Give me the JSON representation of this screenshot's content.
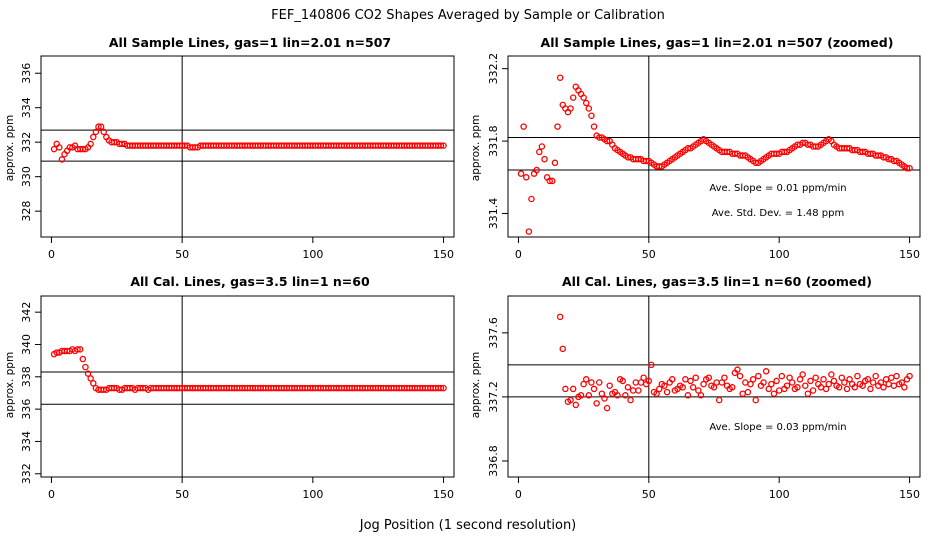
{
  "main_title": "FEF_140806  CO2 Shapes Averaged by Sample or Calibration",
  "x_axis_label": "Jog Position (1 second resolution)",
  "chart_data": [
    {
      "type": "scatter",
      "title": "All Sample Lines, gas=1 lin=2.01 n=507",
      "ylabel": "approx. ppm",
      "xlim": [
        -4,
        154
      ],
      "ylim": [
        326.5,
        337
      ],
      "xticks": [
        0,
        50,
        100,
        150
      ],
      "yticks": [
        328,
        330,
        332,
        334,
        336
      ],
      "hlines": [
        332.7,
        330.9
      ],
      "vline": 50,
      "color": "#ff0000",
      "annotations": [],
      "x": [
        1,
        2,
        3,
        4,
        5,
        6,
        7,
        8,
        9,
        10,
        11,
        12,
        13,
        14,
        15,
        16,
        17,
        18,
        19,
        20,
        21,
        22,
        23,
        24,
        25,
        26,
        27,
        28,
        29,
        30,
        31,
        32,
        33,
        34,
        35,
        36,
        37,
        38,
        39,
        40,
        41,
        42,
        43,
        44,
        45,
        46,
        47,
        48,
        49,
        50,
        51,
        52,
        53,
        54,
        55,
        56,
        57,
        58,
        59,
        60,
        61,
        62,
        63,
        64,
        65,
        66,
        67,
        68,
        69,
        70,
        71,
        72,
        73,
        74,
        75,
        76,
        77,
        78,
        79,
        80,
        81,
        82,
        83,
        84,
        85,
        86,
        87,
        88,
        89,
        90,
        91,
        92,
        93,
        94,
        95,
        96,
        97,
        98,
        99,
        100,
        101,
        102,
        103,
        104,
        105,
        106,
        107,
        108,
        109,
        110,
        111,
        112,
        113,
        114,
        115,
        116,
        117,
        118,
        119,
        120,
        121,
        122,
        123,
        124,
        125,
        126,
        127,
        128,
        129,
        130,
        131,
        132,
        133,
        134,
        135,
        136,
        137,
        138,
        139,
        140,
        141,
        142,
        143,
        144,
        145,
        146,
        147,
        148,
        149,
        150
      ],
      "y": [
        331.6,
        331.9,
        331.7,
        331.0,
        331.3,
        331.5,
        331.7,
        331.7,
        331.8,
        331.6,
        331.6,
        331.6,
        331.6,
        331.7,
        331.9,
        332.3,
        332.6,
        332.9,
        332.9,
        332.6,
        332.3,
        332.1,
        332.0,
        332.0,
        332.0,
        331.9,
        331.9,
        331.9,
        331.8,
        331.8,
        331.8,
        331.8,
        331.8,
        331.8,
        331.8,
        331.8,
        331.8,
        331.8,
        331.8,
        331.8,
        331.8,
        331.8,
        331.8,
        331.8,
        331.8,
        331.8,
        331.8,
        331.8,
        331.8,
        331.8,
        331.8,
        331.8,
        331.7,
        331.7,
        331.7,
        331.7,
        331.8,
        331.8,
        331.8,
        331.8,
        331.8,
        331.8,
        331.8,
        331.8,
        331.8,
        331.8,
        331.8,
        331.8,
        331.8,
        331.8,
        331.8,
        331.8,
        331.8,
        331.8,
        331.8,
        331.8,
        331.8,
        331.8,
        331.8,
        331.8,
        331.8,
        331.8,
        331.8,
        331.8,
        331.8,
        331.8,
        331.8,
        331.8,
        331.8,
        331.8,
        331.8,
        331.8,
        331.8,
        331.8,
        331.8,
        331.8,
        331.8,
        331.8,
        331.8,
        331.8,
        331.8,
        331.8,
        331.8,
        331.8,
        331.8,
        331.8,
        331.8,
        331.8,
        331.8,
        331.8,
        331.8,
        331.8,
        331.8,
        331.8,
        331.8,
        331.8,
        331.8,
        331.8,
        331.8,
        331.8,
        331.8,
        331.8,
        331.8,
        331.8,
        331.8,
        331.8,
        331.8,
        331.8,
        331.8,
        331.8,
        331.8,
        331.8,
        331.8,
        331.8,
        331.8,
        331.8,
        331.8,
        331.8,
        331.8,
        331.8,
        331.8,
        331.8,
        331.8,
        331.8,
        331.8,
        331.8,
        331.8,
        331.8,
        331.8,
        331.8
      ]
    },
    {
      "type": "scatter",
      "title": "All Sample Lines, gas=1 lin=2.01 n=507 (zoomed)",
      "ylabel": "approx. ppm",
      "xlim": [
        -4,
        154
      ],
      "ylim": [
        331.27,
        332.27
      ],
      "xticks": [
        0,
        50,
        100,
        150
      ],
      "yticks": [
        331.4,
        331.8,
        332.2
      ],
      "hlines": [
        331.82,
        331.64
      ],
      "vline": 50,
      "color": "#ff0000",
      "annotations": [
        "Ave. Slope =  0.01  ppm/min",
        "Ave. Std. Dev. =  1.48  ppm"
      ],
      "x": [
        1,
        2,
        3,
        4,
        5,
        6,
        7,
        8,
        9,
        10,
        11,
        12,
        13,
        14,
        15,
        16,
        17,
        18,
        19,
        20,
        21,
        22,
        23,
        24,
        25,
        26,
        27,
        28,
        29,
        30,
        31,
        32,
        33,
        34,
        35,
        36,
        37,
        38,
        39,
        40,
        41,
        42,
        43,
        44,
        45,
        46,
        47,
        48,
        49,
        50,
        51,
        52,
        53,
        54,
        55,
        56,
        57,
        58,
        59,
        60,
        61,
        62,
        63,
        64,
        65,
        66,
        67,
        68,
        69,
        70,
        71,
        72,
        73,
        74,
        75,
        76,
        77,
        78,
        79,
        80,
        81,
        82,
        83,
        84,
        85,
        86,
        87,
        88,
        89,
        90,
        91,
        92,
        93,
        94,
        95,
        96,
        97,
        98,
        99,
        100,
        101,
        102,
        103,
        104,
        105,
        106,
        107,
        108,
        109,
        110,
        111,
        112,
        113,
        114,
        115,
        116,
        117,
        118,
        119,
        120,
        121,
        122,
        123,
        124,
        125,
        126,
        127,
        128,
        129,
        130,
        131,
        132,
        133,
        134,
        135,
        136,
        137,
        138,
        139,
        140,
        141,
        142,
        143,
        144,
        145,
        146,
        147,
        148,
        149,
        150
      ],
      "y": [
        331.62,
        331.88,
        331.6,
        331.3,
        331.48,
        331.62,
        331.64,
        331.74,
        331.77,
        331.7,
        331.6,
        331.58,
        331.58,
        331.68,
        331.88,
        332.15,
        332.0,
        331.98,
        331.96,
        331.98,
        332.04,
        332.1,
        332.08,
        332.06,
        332.04,
        332.01,
        331.98,
        331.94,
        331.88,
        331.83,
        331.82,
        331.82,
        331.81,
        331.8,
        331.8,
        331.78,
        331.76,
        331.75,
        331.74,
        331.73,
        331.72,
        331.71,
        331.71,
        331.7,
        331.7,
        331.7,
        331.7,
        331.69,
        331.69,
        331.69,
        331.68,
        331.67,
        331.66,
        331.66,
        331.66,
        331.67,
        331.68,
        331.69,
        331.7,
        331.71,
        331.72,
        331.73,
        331.74,
        331.75,
        331.76,
        331.76,
        331.77,
        331.78,
        331.79,
        331.8,
        331.81,
        331.8,
        331.79,
        331.78,
        331.77,
        331.76,
        331.75,
        331.74,
        331.74,
        331.74,
        331.74,
        331.73,
        331.73,
        331.73,
        331.72,
        331.72,
        331.72,
        331.71,
        331.7,
        331.69,
        331.68,
        331.68,
        331.69,
        331.7,
        331.71,
        331.72,
        331.73,
        331.73,
        331.73,
        331.73,
        331.74,
        331.74,
        331.74,
        331.75,
        331.76,
        331.77,
        331.78,
        331.78,
        331.79,
        331.79,
        331.78,
        331.78,
        331.77,
        331.77,
        331.77,
        331.78,
        331.79,
        331.8,
        331.81,
        331.8,
        331.78,
        331.77,
        331.76,
        331.76,
        331.76,
        331.76,
        331.76,
        331.75,
        331.75,
        331.75,
        331.74,
        331.74,
        331.74,
        331.73,
        331.73,
        331.73,
        331.72,
        331.72,
        331.72,
        331.71,
        331.71,
        331.7,
        331.7,
        331.69,
        331.69,
        331.68,
        331.67,
        331.66,
        331.65,
        331.65
      ]
    },
    {
      "type": "scatter",
      "title": "All Cal. Lines, gas=3.5 lin=1 n=60",
      "ylabel": "approx. ppm",
      "xlim": [
        -4,
        154
      ],
      "ylim": [
        331.8,
        343
      ],
      "xticks": [
        0,
        50,
        100,
        150
      ],
      "yticks": [
        332,
        334,
        336,
        338,
        340,
        342
      ],
      "hlines": [
        338.3,
        336.3
      ],
      "vline": 50,
      "color": "#ff0000",
      "annotations": [],
      "x": [
        1,
        2,
        3,
        4,
        5,
        6,
        7,
        8,
        9,
        10,
        11,
        12,
        13,
        14,
        15,
        16,
        17,
        18,
        19,
        20,
        21,
        22,
        23,
        24,
        25,
        26,
        27,
        28,
        29,
        30,
        31,
        32,
        33,
        34,
        35,
        36,
        37,
        38,
        39,
        40,
        41,
        42,
        43,
        44,
        45,
        46,
        47,
        48,
        49,
        50,
        51,
        52,
        53,
        54,
        55,
        56,
        57,
        58,
        59,
        60,
        61,
        62,
        63,
        64,
        65,
        66,
        67,
        68,
        69,
        70,
        71,
        72,
        73,
        74,
        75,
        76,
        77,
        78,
        79,
        80,
        81,
        82,
        83,
        84,
        85,
        86,
        87,
        88,
        89,
        90,
        91,
        92,
        93,
        94,
        95,
        96,
        97,
        98,
        99,
        100,
        101,
        102,
        103,
        104,
        105,
        106,
        107,
        108,
        109,
        110,
        111,
        112,
        113,
        114,
        115,
        116,
        117,
        118,
        119,
        120,
        121,
        122,
        123,
        124,
        125,
        126,
        127,
        128,
        129,
        130,
        131,
        132,
        133,
        134,
        135,
        136,
        137,
        138,
        139,
        140,
        141,
        142,
        143,
        144,
        145,
        146,
        147,
        148,
        149,
        150
      ],
      "y": [
        339.4,
        339.5,
        339.5,
        339.6,
        339.6,
        339.6,
        339.6,
        339.7,
        339.6,
        339.7,
        339.7,
        339.1,
        338.6,
        338.2,
        337.9,
        337.6,
        337.3,
        337.2,
        337.2,
        337.2,
        337.2,
        337.3,
        337.3,
        337.3,
        337.3,
        337.2,
        337.2,
        337.3,
        337.3,
        337.3,
        337.3,
        337.2,
        337.3,
        337.3,
        337.3,
        337.3,
        337.2,
        337.3,
        337.3,
        337.3,
        337.3,
        337.3,
        337.3,
        337.3,
        337.3,
        337.3,
        337.3,
        337.3,
        337.3,
        337.3,
        337.3,
        337.3,
        337.3,
        337.3,
        337.3,
        337.3,
        337.3,
        337.3,
        337.3,
        337.3,
        337.3,
        337.3,
        337.3,
        337.3,
        337.3,
        337.3,
        337.3,
        337.3,
        337.3,
        337.3,
        337.3,
        337.3,
        337.3,
        337.3,
        337.3,
        337.3,
        337.3,
        337.3,
        337.3,
        337.3,
        337.3,
        337.3,
        337.3,
        337.3,
        337.3,
        337.3,
        337.3,
        337.3,
        337.3,
        337.3,
        337.3,
        337.3,
        337.3,
        337.3,
        337.3,
        337.3,
        337.3,
        337.3,
        337.3,
        337.3,
        337.3,
        337.3,
        337.3,
        337.3,
        337.3,
        337.3,
        337.3,
        337.3,
        337.3,
        337.3,
        337.3,
        337.3,
        337.3,
        337.3,
        337.3,
        337.3,
        337.3,
        337.3,
        337.3,
        337.3,
        337.3,
        337.3,
        337.3,
        337.3,
        337.3,
        337.3,
        337.3,
        337.3,
        337.3,
        337.3,
        337.3,
        337.3,
        337.3,
        337.3,
        337.3,
        337.3,
        337.3,
        337.3,
        337.3,
        337.3,
        337.3,
        337.3,
        337.3,
        337.3,
        337.3,
        337.3,
        337.3,
        337.3,
        337.3,
        337.3
      ]
    },
    {
      "type": "scatter",
      "title": "All Cal. Lines, gas=3.5 lin=1 n=60 (zoomed)",
      "ylabel": "approx. ppm",
      "xlim": [
        -4,
        154
      ],
      "ylim": [
        336.7,
        337.83
      ],
      "xticks": [
        0,
        50,
        100,
        150
      ],
      "yticks": [
        336.8,
        337.2,
        337.6
      ],
      "hlines": [
        337.4,
        337.2
      ],
      "vline": 50,
      "color": "#ff0000",
      "annotations": [
        "Ave. Slope =  0.03  ppm/min"
      ],
      "x": [
        16,
        17,
        18,
        19,
        20,
        21,
        22,
        23,
        24,
        25,
        26,
        27,
        28,
        29,
        30,
        31,
        32,
        33,
        34,
        35,
        36,
        37,
        38,
        39,
        40,
        41,
        42,
        43,
        44,
        45,
        46,
        47,
        48,
        49,
        50,
        51,
        52,
        53,
        54,
        55,
        56,
        57,
        58,
        59,
        60,
        61,
        62,
        63,
        64,
        65,
        66,
        67,
        68,
        69,
        70,
        71,
        72,
        73,
        74,
        75,
        76,
        77,
        78,
        79,
        80,
        81,
        82,
        83,
        84,
        85,
        86,
        87,
        88,
        89,
        90,
        91,
        92,
        93,
        94,
        95,
        96,
        97,
        98,
        99,
        100,
        101,
        102,
        103,
        104,
        105,
        106,
        107,
        108,
        109,
        110,
        111,
        112,
        113,
        114,
        115,
        116,
        117,
        118,
        119,
        120,
        121,
        122,
        123,
        124,
        125,
        126,
        127,
        128,
        129,
        130,
        131,
        132,
        133,
        134,
        135,
        136,
        137,
        138,
        139,
        140,
        141,
        142,
        143,
        144,
        145,
        146,
        147,
        148,
        149,
        150
      ],
      "y": [
        337.7,
        337.5,
        337.25,
        337.17,
        337.18,
        337.25,
        337.15,
        337.2,
        337.21,
        337.28,
        337.31,
        337.21,
        337.29,
        337.25,
        337.16,
        337.29,
        337.22,
        337.19,
        337.13,
        337.27,
        337.22,
        337.23,
        337.21,
        337.31,
        337.3,
        337.21,
        337.26,
        337.18,
        337.24,
        337.29,
        337.24,
        337.29,
        337.32,
        337.28,
        337.3,
        337.4,
        337.23,
        337.22,
        337.25,
        337.28,
        337.27,
        337.23,
        337.29,
        337.31,
        337.24,
        337.25,
        337.27,
        337.26,
        337.31,
        337.21,
        337.3,
        337.26,
        337.32,
        337.24,
        337.21,
        337.28,
        337.31,
        337.32,
        337.27,
        337.26,
        337.29,
        337.18,
        337.29,
        337.32,
        337.27,
        337.25,
        337.26,
        337.35,
        337.37,
        337.33,
        337.22,
        337.29,
        337.23,
        337.28,
        337.31,
        337.18,
        337.33,
        337.27,
        337.29,
        337.36,
        337.25,
        337.28,
        337.22,
        337.3,
        337.24,
        337.33,
        337.25,
        337.27,
        337.32,
        337.29,
        337.25,
        337.26,
        337.31,
        337.34,
        337.27,
        337.22,
        337.3,
        337.24,
        337.32,
        337.28,
        337.26,
        337.31,
        337.25,
        337.28,
        337.34,
        337.3,
        337.27,
        337.26,
        337.32,
        337.29,
        337.25,
        337.31,
        337.28,
        337.26,
        337.33,
        337.28,
        337.27,
        337.3,
        337.31,
        337.25,
        337.29,
        337.33,
        337.27,
        337.29,
        337.26,
        337.31,
        337.28,
        337.32,
        337.27,
        337.33,
        337.28,
        337.29,
        337.26,
        337.31,
        337.33
      ]
    }
  ]
}
